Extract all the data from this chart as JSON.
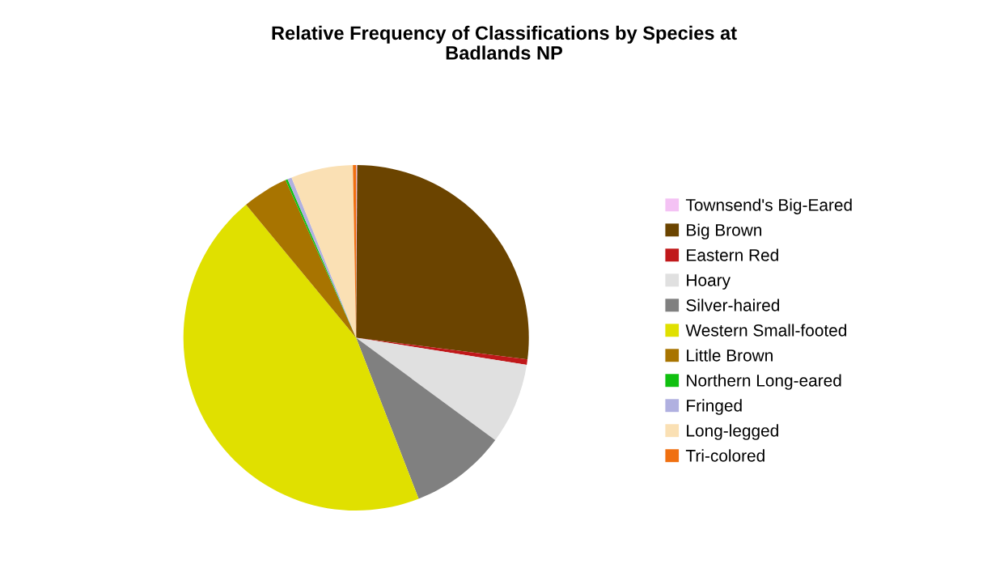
{
  "chart_data": {
    "type": "pie",
    "title": "Relative Frequency of Classifications by Species at\nBadlands NP",
    "categories": [
      "Townsend's Big-Eared",
      "Big Brown",
      "Eastern Red",
      "Hoary",
      "Silver-haired",
      "Western Small-footed",
      "Little Brown",
      "Northern Long-eared",
      "Fringed",
      "Long-legged",
      "Tri-colored"
    ],
    "values": [
      0.1,
      26.9,
      0.5,
      7.6,
      9.0,
      44.9,
      4.3,
      0.2,
      0.4,
      5.8,
      0.3
    ],
    "colors": [
      "#f4c2f4",
      "#6b4400",
      "#c0181a",
      "#e0e0e0",
      "#808080",
      "#e0e000",
      "#a87400",
      "#10c010",
      "#b0b0e0",
      "#fae0b4",
      "#f07010"
    ],
    "legend": "right"
  }
}
